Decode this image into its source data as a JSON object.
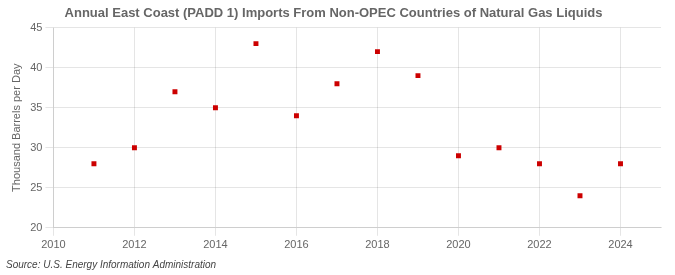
{
  "chart_data": {
    "type": "scatter",
    "title": "Annual East Coast (PADD 1) Imports From Non-OPEC Countries of Natural Gas Liquids",
    "ylabel": "Thousand Barrels per Day",
    "annotations": [
      "Source: U.S. Energy Information Administration"
    ],
    "x": [
      2011,
      2012,
      2013,
      2014,
      2015,
      2016,
      2017,
      2018,
      2019,
      2020,
      2021,
      2022,
      2023,
      2024
    ],
    "values": [
      28,
      30,
      37,
      35,
      43,
      34,
      38,
      42,
      39,
      29,
      30,
      28,
      24,
      28
    ],
    "color": "#cc0000",
    "marker": "square",
    "xlim": [
      2010,
      2025
    ],
    "ylim": [
      20,
      45
    ],
    "xticks": [
      2010,
      2012,
      2014,
      2016,
      2018,
      2020,
      2022,
      2024
    ],
    "yticks": [
      20,
      25,
      30,
      35,
      40,
      45
    ],
    "grid": true
  }
}
